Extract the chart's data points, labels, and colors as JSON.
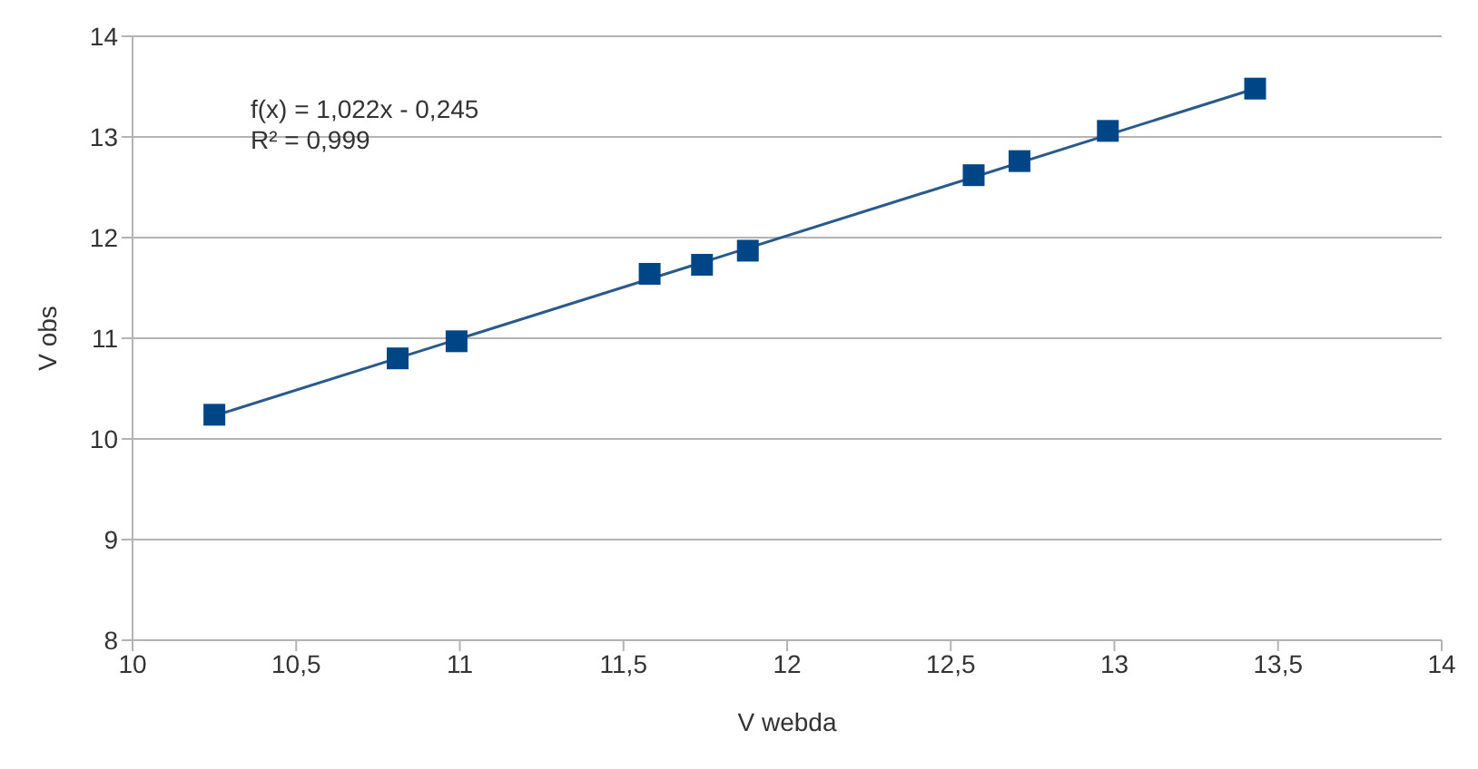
{
  "chart_data": {
    "type": "scatter",
    "xlabel": "V webda",
    "ylabel": "V obs",
    "annotations": [
      "f(x) = 1,022x - 0,245",
      "R² = 0,999"
    ],
    "series": [
      {
        "color": "#004586",
        "marker": "square",
        "x": [
          10.25,
          10.81,
          10.99,
          11.58,
          11.74,
          11.88,
          12.57,
          12.71,
          12.98,
          13.43
        ],
        "values": [
          10.24,
          10.8,
          10.97,
          11.64,
          11.73,
          11.87,
          12.62,
          12.76,
          13.06,
          13.48
        ]
      },
      {
        "type": "line",
        "color": "#2a5a8a",
        "x": [
          10.25,
          13.43
        ],
        "values": [
          10.23,
          13.48
        ]
      }
    ],
    "xlim": [
      10,
      14
    ],
    "xticks": [
      10,
      {
        "value": 10.5,
        "label": "10,5"
      },
      11,
      {
        "value": 11.5,
        "label": "11,5"
      },
      12,
      {
        "value": 12.5,
        "label": "12,5"
      },
      13,
      {
        "value": 13.5,
        "label": "13,5"
      },
      14
    ],
    "ylim": [
      8,
      14
    ],
    "yticks": [
      8,
      9,
      10,
      11,
      12,
      13,
      14
    ],
    "grid": "y",
    "legend": false
  }
}
